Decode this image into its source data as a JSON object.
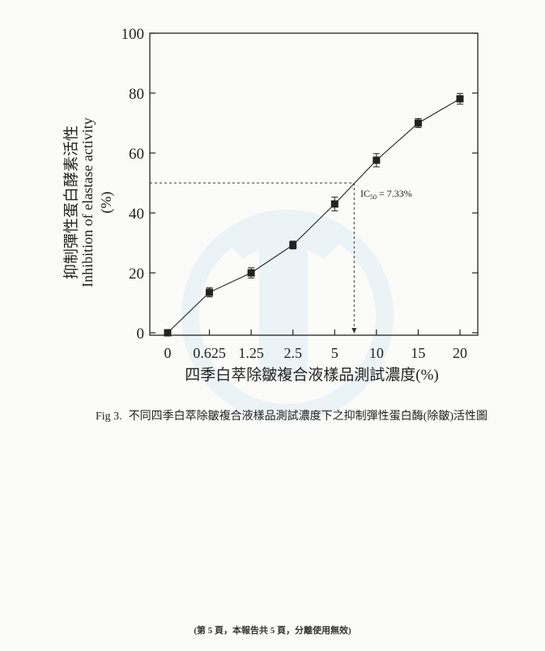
{
  "chart_data": {
    "type": "line",
    "categories": [
      "0",
      "0.625",
      "1.25",
      "2.5",
      "5",
      "10",
      "15",
      "20"
    ],
    "series": [
      {
        "values": [
          0,
          13.5,
          20,
          29.3,
          43,
          57.6,
          70,
          78.1
        ],
        "error": [
          0.5,
          1.5,
          1.7,
          1.3,
          2.3,
          2.2,
          1.5,
          1.8
        ]
      }
    ],
    "ylim": [
      0,
      100
    ],
    "yticks": [
      0,
      20,
      40,
      60,
      80,
      100
    ],
    "xlabel": "四季白萃除皺複合液樣品測試濃度(%)",
    "ylabel": {
      "zh": "抑制彈性蛋白酵素活性",
      "en": "Inhibition of elastase activity",
      "unit": "(%)"
    },
    "ic50": {
      "level": 50,
      "x": 7.33,
      "label_prefix": "IC",
      "label_subscript": "50",
      "label_suffix": " = 7.33%"
    },
    "grid": false,
    "colors": {
      "line": "#222222",
      "marker": "#222222",
      "dashed": "#333333",
      "watermark": "#9fcbe6"
    }
  },
  "caption": {
    "fig": "Fig 3.",
    "text": "不同四季白萃除皺複合液樣品測試濃度下之抑制彈性蛋白酶(除皺)活性圖"
  },
  "footer": "(第 5 頁，本報告共 5 頁，分離使用無效)"
}
